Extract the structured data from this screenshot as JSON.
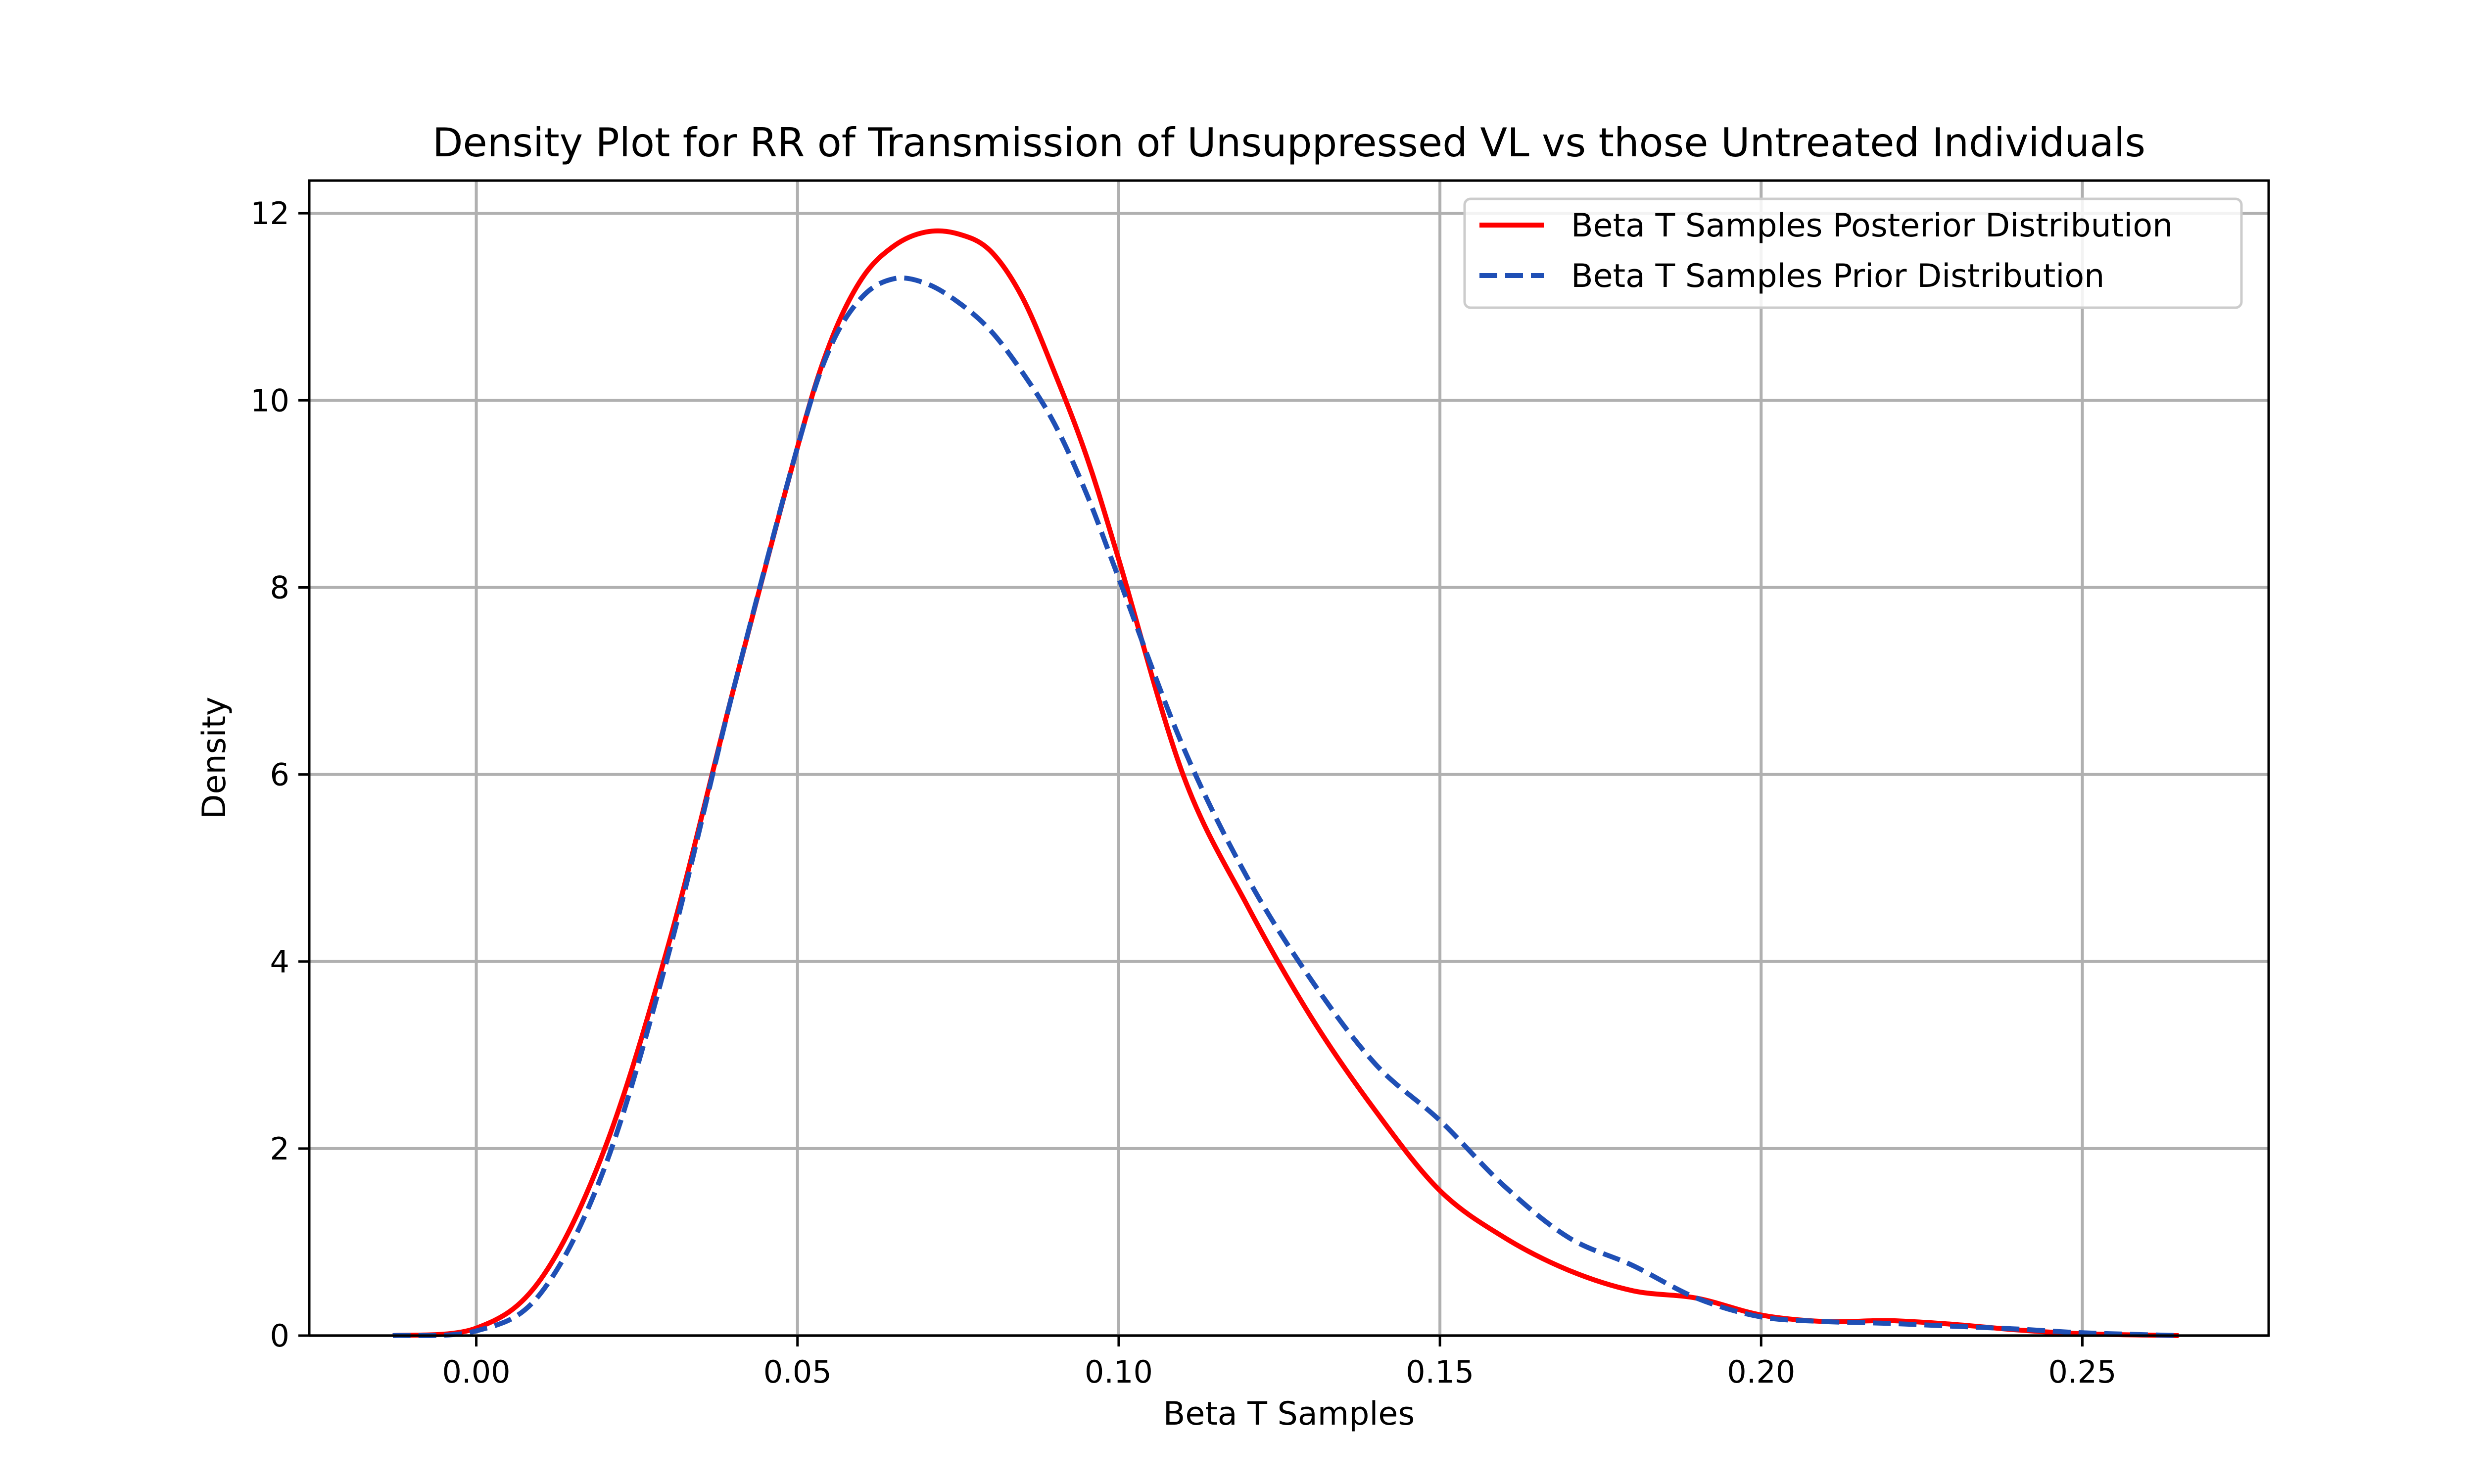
{
  "chart_data": {
    "type": "line",
    "title": "Density Plot for RR of Transmission of Unsuppressed VL vs those Untreated Individuals",
    "xlabel": "Beta T Samples",
    "ylabel": "Density",
    "xlim": [
      -0.026,
      0.279
    ],
    "ylim": [
      0,
      12.35
    ],
    "xticks": [
      0.0,
      0.05,
      0.1,
      0.15,
      0.2,
      0.25
    ],
    "xtick_labels": [
      "0.00",
      "0.05",
      "0.10",
      "0.15",
      "0.20",
      "0.25"
    ],
    "yticks": [
      0,
      2,
      4,
      6,
      8,
      10,
      12
    ],
    "ytick_labels": [
      "0",
      "2",
      "4",
      "6",
      "8",
      "10",
      "12"
    ],
    "grid": true,
    "legend_position": "top-right",
    "series": [
      {
        "name": "Beta T Samples Posterior Distribution",
        "color": "#ff0000",
        "style": "solid",
        "x": [
          -0.013,
          0.0,
          0.01,
          0.02,
          0.03,
          0.04,
          0.05,
          0.055,
          0.06,
          0.065,
          0.07,
          0.075,
          0.08,
          0.085,
          0.09,
          0.095,
          0.1,
          0.11,
          0.12,
          0.13,
          0.14,
          0.15,
          0.16,
          0.17,
          0.18,
          0.19,
          0.2,
          0.21,
          0.22,
          0.23,
          0.24,
          0.25,
          0.265
        ],
        "y": [
          0.0,
          0.08,
          0.6,
          2.0,
          4.2,
          6.9,
          9.5,
          10.6,
          11.3,
          11.65,
          11.8,
          11.78,
          11.6,
          11.1,
          10.3,
          9.4,
          8.3,
          6.0,
          4.6,
          3.4,
          2.4,
          1.55,
          1.05,
          0.7,
          0.48,
          0.4,
          0.22,
          0.15,
          0.16,
          0.12,
          0.06,
          0.02,
          0.0
        ]
      },
      {
        "name": "Beta T Samples Prior Distribution",
        "color": "#1f4fb5",
        "style": "dashed",
        "x": [
          -0.013,
          0.0,
          0.01,
          0.02,
          0.03,
          0.04,
          0.05,
          0.055,
          0.06,
          0.065,
          0.07,
          0.075,
          0.08,
          0.085,
          0.09,
          0.095,
          0.1,
          0.11,
          0.12,
          0.13,
          0.14,
          0.15,
          0.16,
          0.17,
          0.18,
          0.19,
          0.2,
          0.21,
          0.22,
          0.23,
          0.24,
          0.25,
          0.265
        ],
        "y": [
          0.0,
          0.05,
          0.45,
          1.8,
          4.1,
          6.9,
          9.5,
          10.55,
          11.1,
          11.3,
          11.25,
          11.05,
          10.75,
          10.3,
          9.75,
          9.0,
          8.1,
          6.3,
          4.9,
          3.8,
          2.9,
          2.3,
          1.6,
          1.05,
          0.75,
          0.4,
          0.2,
          0.15,
          0.13,
          0.1,
          0.07,
          0.03,
          0.0
        ]
      }
    ]
  }
}
